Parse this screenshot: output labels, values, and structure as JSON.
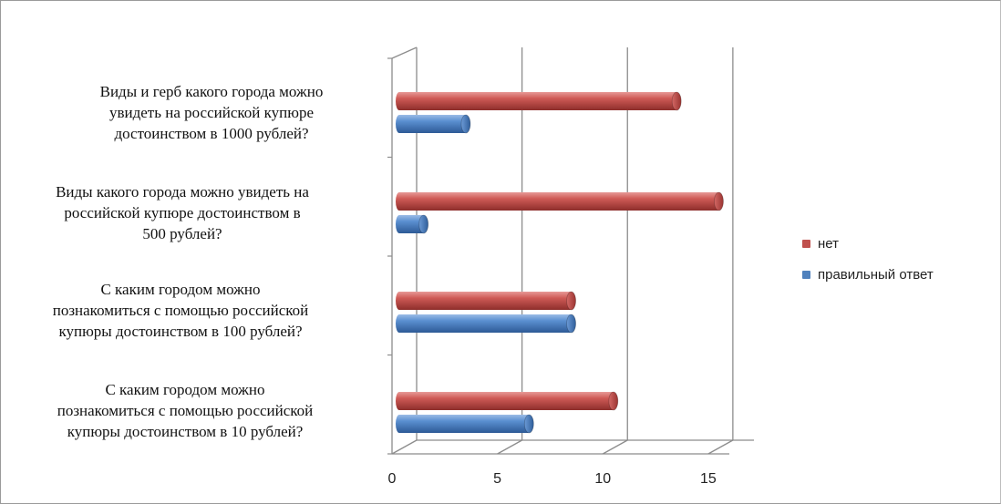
{
  "chart_data": {
    "type": "bar",
    "orientation": "horizontal",
    "style": "3d-cylinder",
    "categories": [
      "Виды и герб какого города можно\nувидеть  на российской купюре\nдостоинством в 1000  рублей?",
      "Виды какого города можно увидеть  на\nроссийской купюре достоинством  в\n500  рублей?",
      "С каким городом можно\nпознакомиться  с помощью российской\nкупюры достоинством  в 100  рублей?",
      "С каким городом можно\nпознакомиться  с помощью российской\nкупюры достоинством  в 10  рублей?"
    ],
    "series": [
      {
        "name": "нет",
        "color": "#c0504d",
        "values": [
          13.5,
          15.5,
          8.5,
          10.5
        ]
      },
      {
        "name": "правильный ответ",
        "color": "#4f81bd",
        "values": [
          3.5,
          1.5,
          8.5,
          6.5
        ]
      }
    ],
    "xlim": [
      0,
      15.7
    ],
    "xticks": [
      "0",
      "5",
      "10",
      "15"
    ],
    "grid": true,
    "legend_position": "right",
    "title": "",
    "xlabel": "",
    "ylabel": ""
  }
}
